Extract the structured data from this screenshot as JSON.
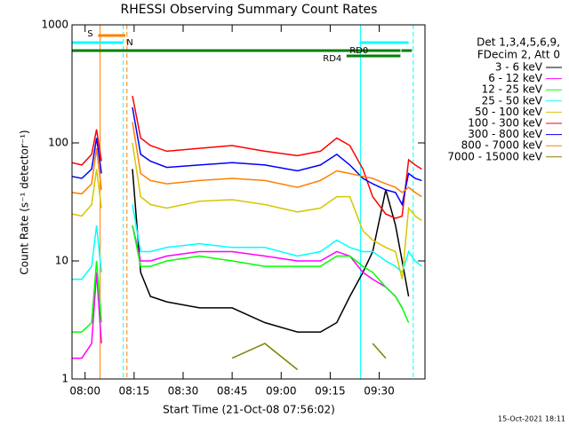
{
  "chart_data": {
    "type": "line",
    "title": "RHESSI Observing Summary Count Rates",
    "x_label": "Start Time (21-Oct-08 07:56:02)",
    "y_label": "Count Rate (s⁻¹ detector⁻¹)",
    "footer": "15-Oct-2021 18:11",
    "legend_title": [
      "Det 1,3,4,5,6,9,",
      "FDecim 2, Att 0"
    ],
    "log_y": true,
    "xlim": [
      476,
      584
    ],
    "ylim": [
      1,
      1000
    ],
    "yticks": [
      1,
      10,
      100,
      1000
    ],
    "xticks": [
      {
        "value": 480,
        "label": "08:00"
      },
      {
        "value": 495,
        "label": "08:15"
      },
      {
        "value": 510,
        "label": "08:30"
      },
      {
        "value": 525,
        "label": "08:45"
      },
      {
        "value": 540,
        "label": "09:00"
      },
      {
        "value": 555,
        "label": "09:15"
      },
      {
        "value": 570,
        "label": "09:30"
      }
    ],
    "x": [
      476,
      479,
      482,
      483.5,
      485,
      489,
      492,
      494.5,
      497,
      500,
      505,
      515,
      525,
      535,
      545,
      552,
      557,
      561,
      565,
      568,
      572,
      575,
      577,
      579,
      581,
      583
    ],
    "series": [
      {
        "name": "3 - 6 keV",
        "color": "#000000",
        "values": [
          null,
          null,
          null,
          100,
          null,
          null,
          null,
          60,
          8,
          5,
          4.5,
          4,
          4,
          3,
          2.5,
          2.5,
          3,
          5,
          8,
          12,
          40,
          20,
          10,
          5,
          null,
          null
        ]
      },
      {
        "name": "6 - 12 keV",
        "color": "#ff00ff",
        "values": [
          1.5,
          1.5,
          2,
          8,
          2,
          null,
          null,
          20,
          10,
          10,
          11,
          12,
          12,
          11,
          10,
          10,
          12,
          11,
          8,
          7,
          6,
          5,
          4,
          null,
          null,
          null
        ]
      },
      {
        "name": "12 - 25 keV",
        "color": "#00ff00",
        "values": [
          2.5,
          2.5,
          3,
          10,
          3,
          null,
          null,
          20,
          9,
          9,
          10,
          11,
          10,
          9,
          9,
          9,
          11,
          11,
          9,
          8,
          6,
          5,
          4,
          3,
          null,
          null
        ]
      },
      {
        "name": "25 - 50 keV",
        "color": "#00ffff",
        "values": [
          7,
          7,
          9,
          20,
          8,
          null,
          null,
          30,
          12,
          12,
          13,
          14,
          13,
          13,
          11,
          12,
          15,
          13,
          12,
          12,
          10,
          9,
          8,
          12,
          10,
          9
        ]
      },
      {
        "name": "50 - 100 keV",
        "color": "#d4c800",
        "values": [
          25,
          24,
          30,
          60,
          28,
          null,
          null,
          100,
          35,
          30,
          28,
          32,
          33,
          30,
          26,
          28,
          35,
          35,
          18,
          15,
          13,
          12,
          7,
          28,
          24,
          22
        ]
      },
      {
        "name": "100 - 300 keV",
        "color": "#ff0000",
        "values": [
          68,
          65,
          80,
          130,
          70,
          null,
          null,
          250,
          110,
          95,
          85,
          90,
          95,
          85,
          78,
          85,
          110,
          95,
          60,
          35,
          25,
          23,
          24,
          72,
          65,
          60
        ]
      },
      {
        "name": "300 - 800 keV",
        "color": "#0000ff",
        "values": [
          52,
          50,
          60,
          110,
          55,
          null,
          null,
          200,
          80,
          70,
          62,
          65,
          68,
          65,
          58,
          65,
          80,
          65,
          50,
          45,
          40,
          38,
          30,
          55,
          50,
          48
        ]
      },
      {
        "name": "800 - 7000 keV",
        "color": "#ff8000",
        "values": [
          38,
          37,
          45,
          90,
          40,
          null,
          null,
          150,
          55,
          48,
          45,
          48,
          50,
          48,
          42,
          48,
          58,
          55,
          52,
          50,
          45,
          42,
          38,
          42,
          38,
          35
        ]
      },
      {
        "name": "7000 - 15000 keV",
        "color": "#808000",
        "values": [
          null,
          null,
          null,
          null,
          null,
          null,
          null,
          null,
          null,
          null,
          null,
          null,
          1.5,
          2,
          1.2,
          null,
          null,
          null,
          null,
          2,
          1.5,
          null,
          null,
          null,
          null,
          null
        ]
      }
    ],
    "intervals": [
      {
        "label": "S",
        "start": 484,
        "end": 492.3,
        "color": "#ff8000"
      },
      {
        "label": "N",
        "start": 476,
        "end": 491.5,
        "color": "#00ffff"
      },
      {
        "start": 564,
        "end": 579,
        "color": "#00ffff"
      },
      {
        "label": "RD0",
        "start": 476,
        "end": 576.5,
        "color": "#008000"
      },
      {
        "start": 576.8,
        "end": 580,
        "color": "#008000"
      },
      {
        "label": "RD4",
        "start": 560,
        "end": 576.5,
        "color": "#008000"
      }
    ],
    "vlines": [
      {
        "x": 484.6,
        "color": "#ff8000",
        "dashed": false
      },
      {
        "x": 491.7,
        "color": "#00ffff",
        "dashed": true
      },
      {
        "x": 492.8,
        "color": "#ff8000",
        "dashed": true
      },
      {
        "x": 564.3,
        "color": "#00ffff",
        "dashed": false
      },
      {
        "x": 580.4,
        "color": "#00ffff",
        "dashed": true
      }
    ]
  }
}
